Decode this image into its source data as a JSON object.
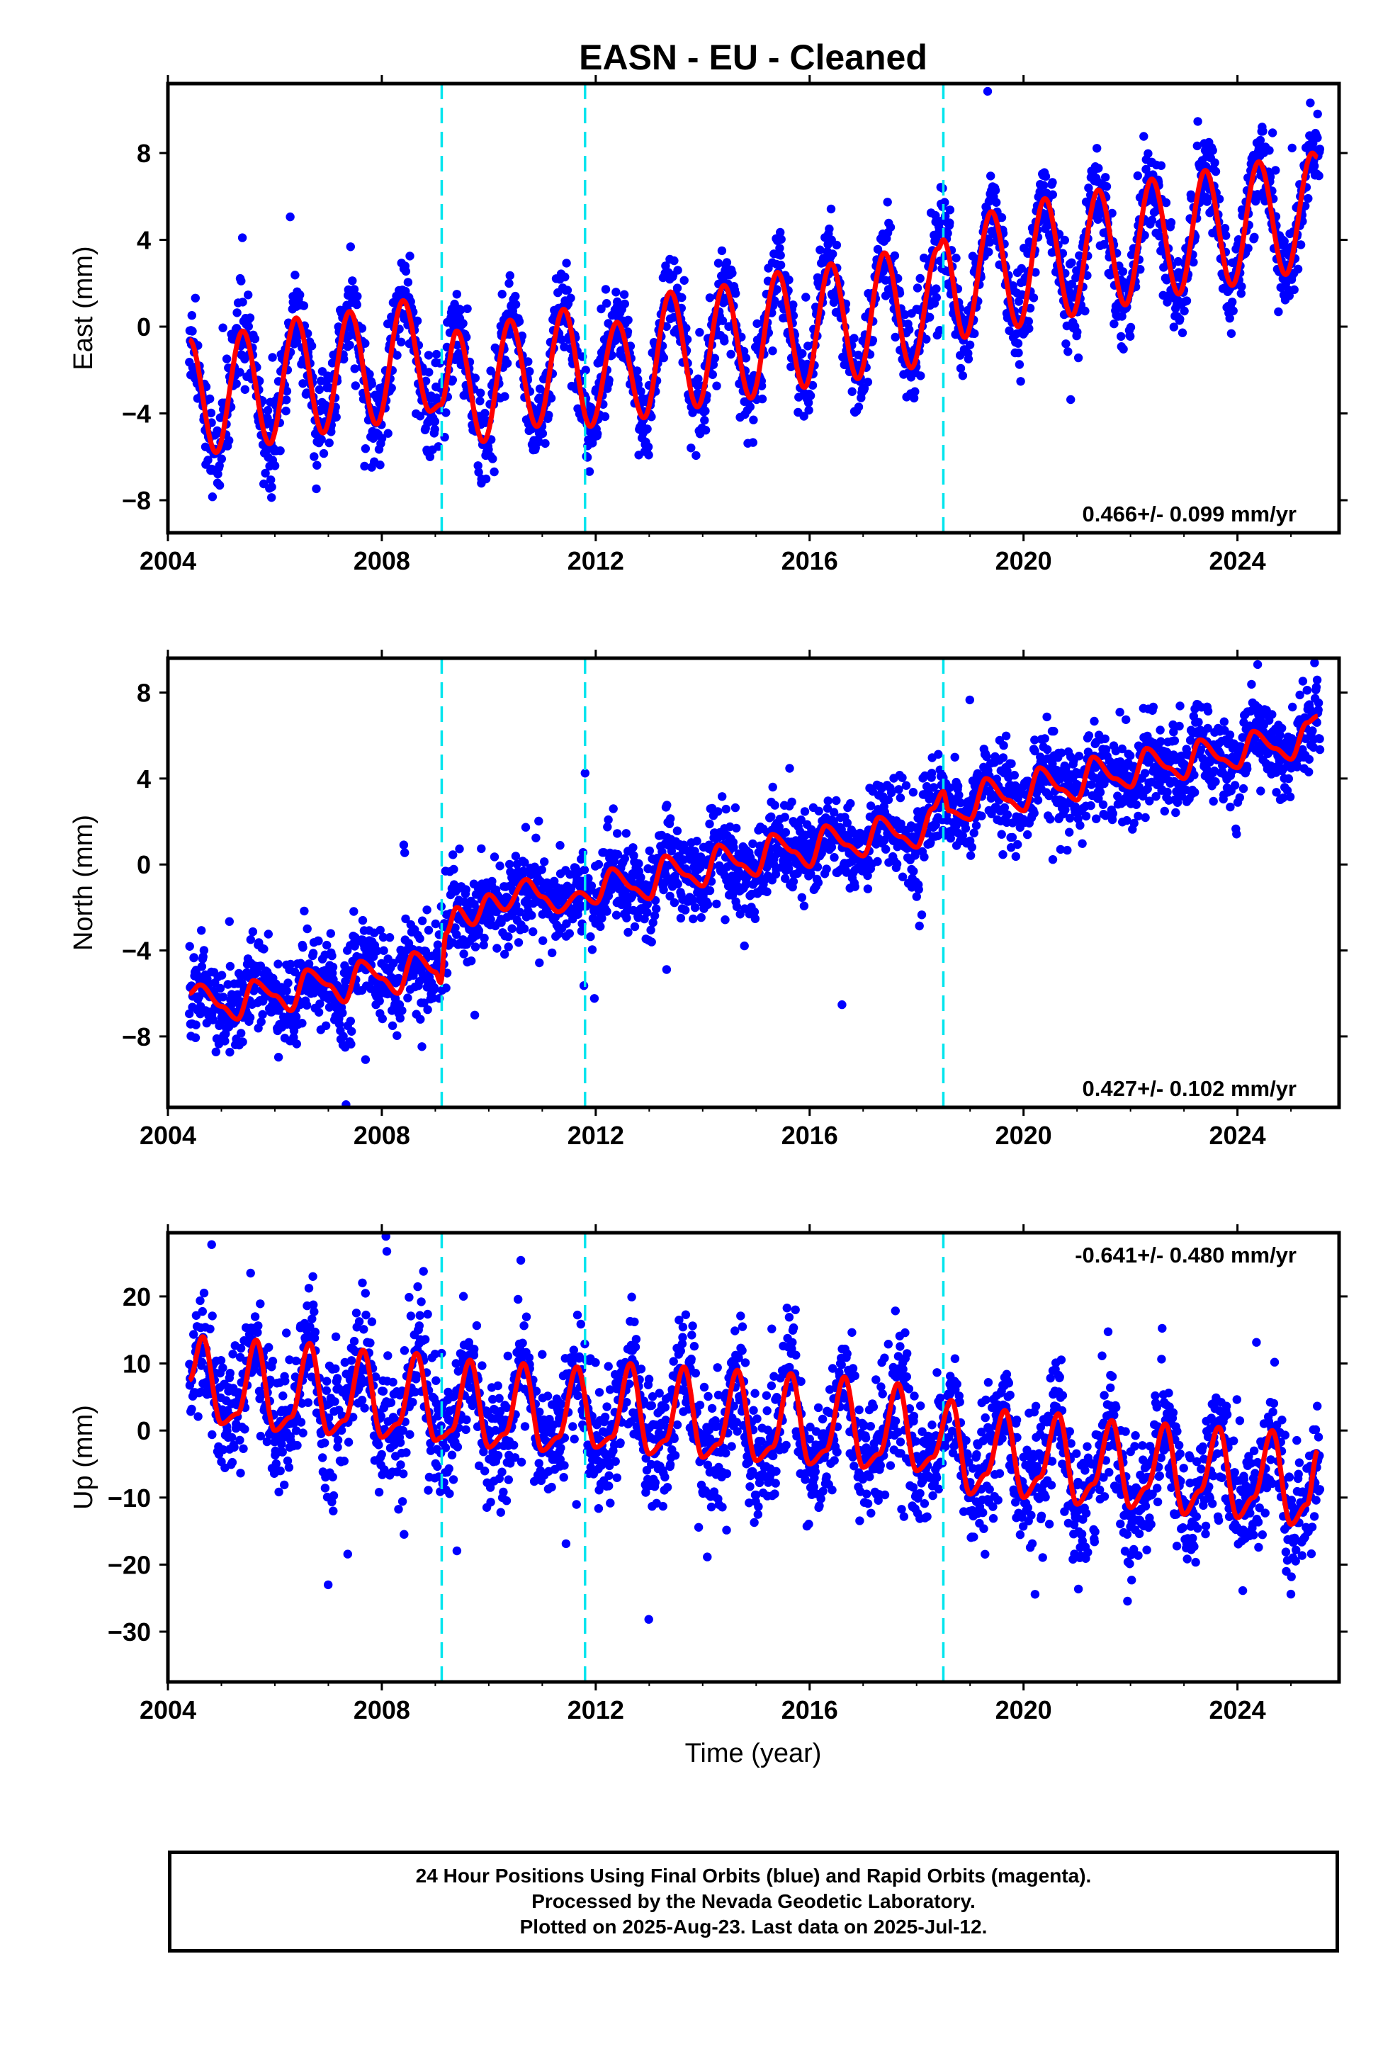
{
  "figure": {
    "title": "EASN  - EU - Cleaned",
    "xlabel": "Time (year)"
  },
  "footer": {
    "lines": [
      "24 Hour Positions Using Final Orbits (blue) and Rapid Orbits (magenta).",
      "Processed by the Nevada Geodetic Laboratory.",
      "Plotted on 2025-Aug-23. Last data on 2025-Jul-12."
    ]
  },
  "colors": {
    "points": "#0000ff",
    "model": "#ff0000",
    "offsets": "#00e5ee",
    "frame": "#000000"
  },
  "chart_data": [
    {
      "type": "scatter",
      "name": "east",
      "ylabel": "East (mm)",
      "xlim": [
        2004.0,
        2025.9
      ],
      "ylim": [
        -9.5,
        11.2
      ],
      "xticks": [
        2004,
        2008,
        2012,
        2016,
        2020,
        2024
      ],
      "yticks": [
        -8,
        -4,
        0,
        4,
        8
      ],
      "offset_lines": [
        2009.12,
        2011.8,
        2018.5
      ],
      "rate_label": "0.466+/- 0.099 mm/yr",
      "rate_label_position": "bottom-right",
      "model": {
        "x": [
          2004.4,
          2004.9,
          2005.4,
          2005.9,
          2006.4,
          2006.9,
          2007.4,
          2007.9,
          2008.4,
          2008.9,
          2009.1,
          2009.4,
          2009.9,
          2010.4,
          2010.9,
          2011.4,
          2011.9,
          2012.4,
          2012.9,
          2013.4,
          2013.9,
          2014.4,
          2014.9,
          2015.4,
          2015.9,
          2016.4,
          2016.9,
          2017.4,
          2017.9,
          2018.4,
          2018.5,
          2018.9,
          2019.4,
          2019.9,
          2020.4,
          2020.9,
          2021.4,
          2021.9,
          2022.4,
          2022.9,
          2023.4,
          2023.9,
          2024.4,
          2024.9,
          2025.4,
          2025.5
        ],
        "y": [
          -0.6,
          -5.8,
          -0.2,
          -5.4,
          0.4,
          -4.9,
          0.7,
          -4.5,
          1.2,
          -3.9,
          -3.6,
          -0.2,
          -5.3,
          0.3,
          -4.6,
          0.8,
          -4.6,
          0.2,
          -4.2,
          1.6,
          -3.7,
          1.9,
          -3.3,
          2.5,
          -2.8,
          2.9,
          -2.4,
          3.4,
          -1.9,
          3.6,
          4.0,
          -0.5,
          5.3,
          0.0,
          5.9,
          0.5,
          6.3,
          1.0,
          6.8,
          1.5,
          7.2,
          1.9,
          7.6,
          2.4,
          8.0,
          7.8
        ]
      },
      "scatter": {
        "noise": 1.0,
        "outliers": 1.6,
        "xrange": [
          2004.4,
          2025.55
        ]
      }
    },
    {
      "type": "scatter",
      "name": "north",
      "ylabel": "North (mm)",
      "xlim": [
        2004.0,
        2025.9
      ],
      "ylim": [
        -11.3,
        9.6
      ],
      "xticks": [
        2004,
        2008,
        2012,
        2016,
        2020,
        2024
      ],
      "yticks": [
        -8,
        -4,
        0,
        4,
        8
      ],
      "offset_lines": [
        2009.12,
        2011.8,
        2018.5
      ],
      "rate_label": "0.427+/- 0.102 mm/yr",
      "rate_label_position": "bottom-right",
      "model": {
        "x": [
          2004.4,
          2004.6,
          2005.0,
          2005.3,
          2005.6,
          2006.0,
          2006.3,
          2006.6,
          2007.0,
          2007.3,
          2007.6,
          2008.0,
          2008.3,
          2008.6,
          2009.0,
          2009.1,
          2009.2,
          2009.4,
          2009.7,
          2010.0,
          2010.3,
          2010.7,
          2011.0,
          2011.3,
          2011.7,
          2012.0,
          2012.3,
          2012.7,
          2013.0,
          2013.3,
          2013.7,
          2014.0,
          2014.3,
          2014.7,
          2015.0,
          2015.3,
          2015.7,
          2016.0,
          2016.3,
          2016.7,
          2017.0,
          2017.3,
          2017.7,
          2018.0,
          2018.3,
          2018.5,
          2018.6,
          2019.0,
          2019.3,
          2019.7,
          2020.0,
          2020.3,
          2020.7,
          2021.0,
          2021.3,
          2021.7,
          2022.0,
          2022.3,
          2022.7,
          2023.0,
          2023.3,
          2023.7,
          2024.0,
          2024.3,
          2024.7,
          2025.0,
          2025.3,
          2025.5
        ],
        "y": [
          -6.0,
          -5.6,
          -6.6,
          -7.2,
          -5.4,
          -6.1,
          -6.8,
          -4.9,
          -5.6,
          -6.4,
          -4.5,
          -5.3,
          -6.0,
          -4.1,
          -5.0,
          -5.5,
          -3.2,
          -2.0,
          -2.8,
          -1.4,
          -2.1,
          -0.7,
          -1.5,
          -2.2,
          -1.3,
          -1.8,
          -0.2,
          -1.1,
          -1.6,
          0.4,
          -0.5,
          -1.0,
          0.9,
          0.0,
          -0.5,
          1.4,
          0.6,
          -0.1,
          1.8,
          0.9,
          0.4,
          2.2,
          1.3,
          0.8,
          2.6,
          3.4,
          2.5,
          2.1,
          4.0,
          3.0,
          2.5,
          4.5,
          3.5,
          3.0,
          5.0,
          4.0,
          3.6,
          5.4,
          4.5,
          4.0,
          5.8,
          4.9,
          4.5,
          6.2,
          5.4,
          4.9,
          6.6,
          6.9
        ]
      },
      "scatter": {
        "noise": 1.0,
        "outliers": 1.5,
        "xrange": [
          2004.4,
          2025.55
        ]
      }
    },
    {
      "type": "scatter",
      "name": "up",
      "ylabel": "Up (mm)",
      "xlim": [
        2004.0,
        2025.9
      ],
      "ylim": [
        -37.5,
        29.5
      ],
      "xticks": [
        2004,
        2008,
        2012,
        2016,
        2020,
        2024
      ],
      "yticks": [
        -30,
        -20,
        -10,
        0,
        10,
        20
      ],
      "offset_lines": [
        2009.12,
        2011.8,
        2018.5
      ],
      "rate_label": "-0.641+/- 0.480 mm/yr",
      "rate_label_position": "top-right",
      "model": {
        "x": [
          2004.4,
          2004.65,
          2005.0,
          2005.3,
          2005.65,
          2006.0,
          2006.3,
          2006.65,
          2007.0,
          2007.3,
          2007.65,
          2008.0,
          2008.3,
          2008.65,
          2009.0,
          2009.12,
          2009.3,
          2009.65,
          2010.0,
          2010.3,
          2010.65,
          2011.0,
          2011.3,
          2011.65,
          2012.0,
          2012.3,
          2012.65,
          2013.0,
          2013.3,
          2013.65,
          2014.0,
          2014.3,
          2014.65,
          2015.0,
          2015.3,
          2015.65,
          2016.0,
          2016.3,
          2016.65,
          2017.0,
          2017.3,
          2017.65,
          2018.0,
          2018.3,
          2018.65,
          2019.0,
          2019.3,
          2019.65,
          2020.0,
          2020.3,
          2020.65,
          2021.0,
          2021.3,
          2021.65,
          2022.0,
          2022.3,
          2022.65,
          2023.0,
          2023.3,
          2023.65,
          2024.0,
          2024.3,
          2024.65,
          2025.0,
          2025.3,
          2025.5
        ],
        "y": [
          7.5,
          14.0,
          1.0,
          2.5,
          13.5,
          0.0,
          2.0,
          13.0,
          -0.5,
          1.5,
          12.0,
          -1.0,
          1.0,
          11.5,
          -1.5,
          -1.0,
          0.0,
          10.5,
          -2.5,
          -0.5,
          10.0,
          -3.0,
          -1.0,
          9.5,
          -2.5,
          -1.0,
          10.0,
          -3.5,
          -1.5,
          9.5,
          -4.0,
          -2.0,
          9.0,
          -4.5,
          -2.5,
          8.5,
          -5.0,
          -3.0,
          8.0,
          -5.5,
          -3.5,
          7.0,
          -6.0,
          -4.0,
          4.5,
          -9.5,
          -6.5,
          3.0,
          -10.0,
          -7.0,
          2.5,
          -11.0,
          -8.0,
          1.5,
          -11.5,
          -8.5,
          1.0,
          -12.5,
          -9.0,
          0.5,
          -13.0,
          -10.0,
          0.0,
          -14.0,
          -11.0,
          -3.0
        ]
      },
      "scatter": {
        "noise": 4.5,
        "outliers": 7.0,
        "xrange": [
          2004.4,
          2025.55
        ]
      }
    }
  ]
}
